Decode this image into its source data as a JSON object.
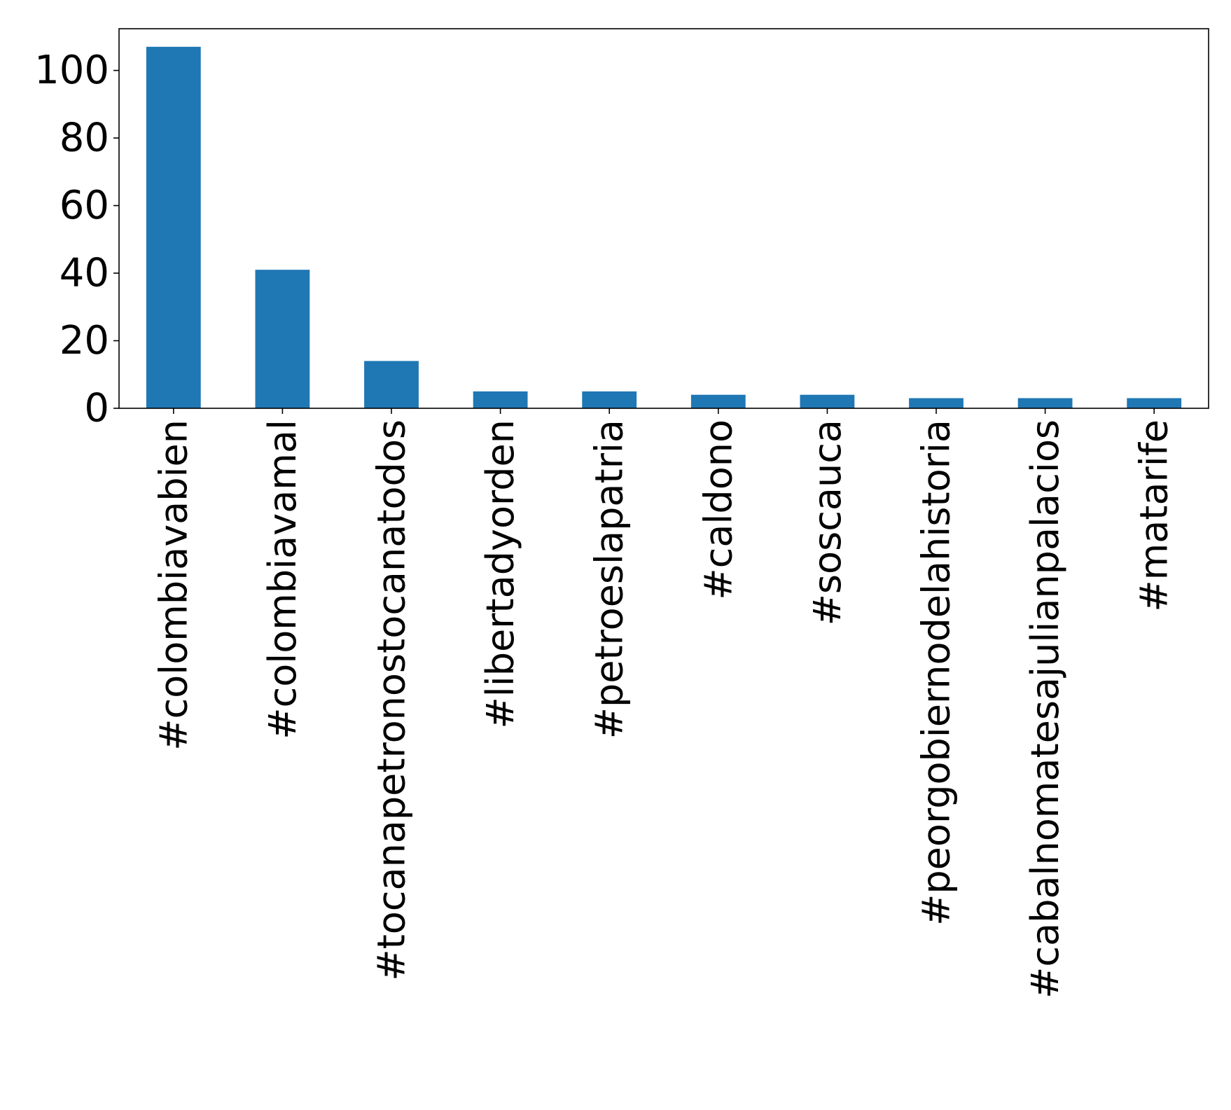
{
  "chart_data": {
    "type": "bar",
    "title": "",
    "xlabel": "",
    "ylabel": "",
    "categories": [
      "#colombiavabien",
      "#colombiavamal",
      "#tocanapetronostocanatodos",
      "#libertadyorden",
      "#petroeslapatria",
      "#caldono",
      "#soscauca",
      "#peorgobiernodelahistoria",
      "#cabalnomatesajulianpalacios",
      "#matarife"
    ],
    "values": [
      107,
      41,
      14,
      5,
      5,
      4,
      4,
      3,
      3,
      3
    ],
    "ylim": [
      0,
      112.35
    ],
    "yticks": [
      0,
      20,
      40,
      60,
      80,
      100
    ],
    "grid": false,
    "legend": "none",
    "colors": {
      "bar": "#1f77b4",
      "axis": "#000000",
      "text": "#000000"
    }
  }
}
